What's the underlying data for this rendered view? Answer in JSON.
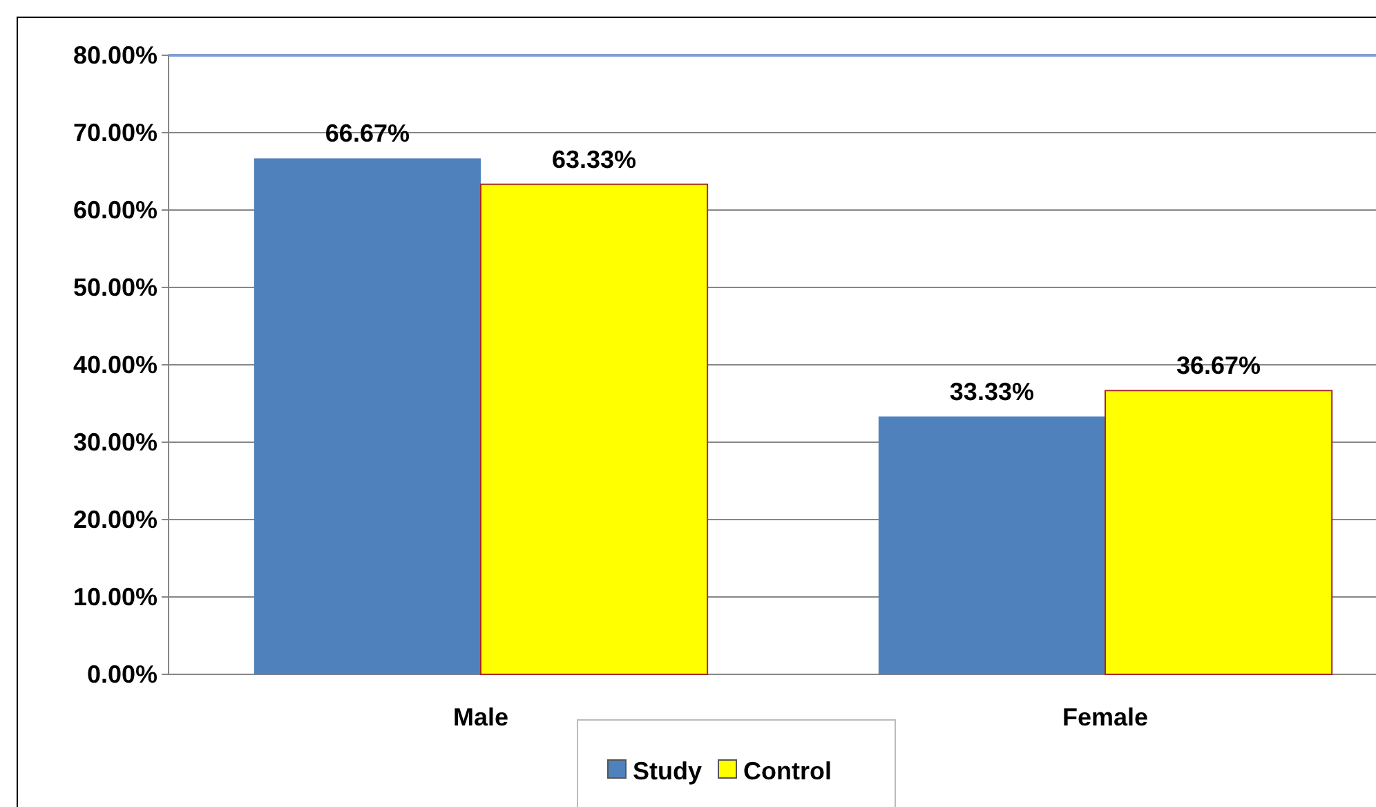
{
  "chart_data": {
    "type": "bar",
    "categories": [
      "Male",
      "Female"
    ],
    "series": [
      {
        "name": "Study",
        "color": "#4f81bd",
        "values": [
          66.67,
          33.33
        ],
        "value_labels": [
          "66.67%",
          "33.33%"
        ]
      },
      {
        "name": "Control",
        "color": "#ffff00",
        "values": [
          63.33,
          36.67
        ],
        "value_labels": [
          "63.33%",
          "36.67%"
        ]
      }
    ],
    "ylim": [
      0,
      80
    ],
    "yticks": [
      {
        "value": 0,
        "label": "0.00%"
      },
      {
        "value": 10,
        "label": "10.00%"
      },
      {
        "value": 20,
        "label": "20.00%"
      },
      {
        "value": 30,
        "label": "30.00%"
      },
      {
        "value": 40,
        "label": "40.00%"
      },
      {
        "value": 50,
        "label": "50.00%"
      },
      {
        "value": 60,
        "label": "60.00%"
      },
      {
        "value": 70,
        "label": "70.00%"
      },
      {
        "value": 80,
        "label": "80.00%"
      }
    ],
    "grid": "y",
    "legend": "bottom"
  }
}
